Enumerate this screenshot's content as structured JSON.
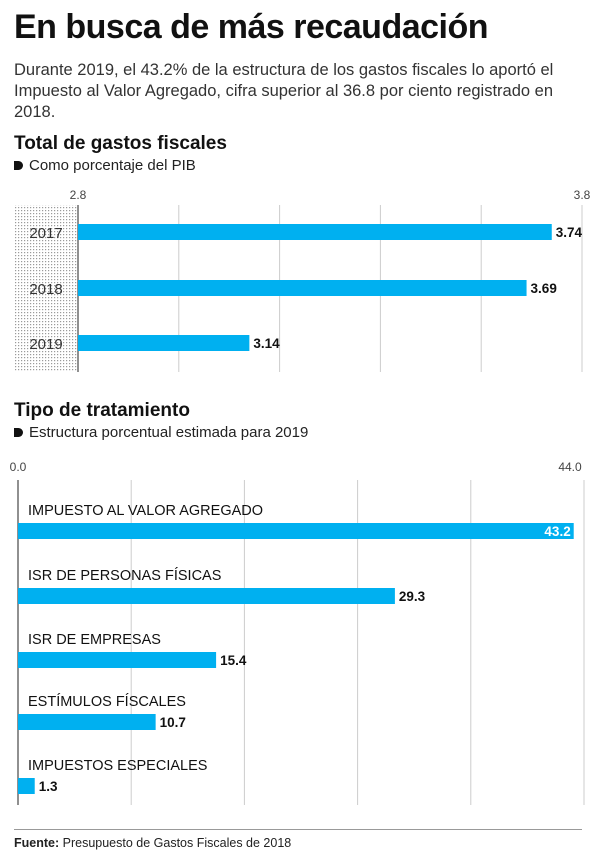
{
  "header": {
    "title": "En busca de más recaudación",
    "subtitle": "Durante 2019, el 43.2% de la estructura de los gastos fiscales lo aportó el Impuesto al Valor Agregado, cifra superior al 36.8 por ciento registrado en 2018."
  },
  "section1": {
    "title": "Total de gastos fiscales",
    "subtitle": "Como porcentaje del PIB"
  },
  "section2": {
    "title": "Tipo de tratamiento",
    "subtitle": "Estructura porcentual estimada para 2019"
  },
  "footer": {
    "label": "Fuente:",
    "text": "Presupuesto de Gastos Fiscales de 2018"
  },
  "colors": {
    "bar": "#00b0f0",
    "grid": "#cccccc",
    "axis": "#222222"
  },
  "chart_data": [
    {
      "type": "bar",
      "orientation": "horizontal",
      "title": "Total de gastos fiscales",
      "subtitle": "Como porcentaje del PIB",
      "categories": [
        "2017",
        "2018",
        "2019"
      ],
      "values": [
        3.74,
        3.69,
        3.14
      ],
      "value_labels": [
        "3.74",
        "3.69",
        "3.14"
      ],
      "xlim": [
        2.8,
        3.8
      ],
      "tick_labels": [
        "2.8",
        "3.8"
      ],
      "grid": true
    },
    {
      "type": "bar",
      "orientation": "horizontal",
      "title": "Tipo de tratamiento",
      "subtitle": "Estructura porcentual estimada para 2019",
      "categories": [
        "IMPUESTO AL VALOR AGREGADO",
        "ISR DE PERSONAS FÍSICAS",
        "ISR DE EMPRESAS",
        "ESTÍMULOS FÍSCALES",
        "IMPUESTOS ESPECIALES"
      ],
      "values": [
        43.2,
        29.3,
        15.4,
        10.7,
        1.3
      ],
      "value_labels": [
        "43.2",
        "29.3",
        "15.4",
        "10.7",
        "1.3"
      ],
      "xlim": [
        0,
        44
      ],
      "tick_labels": [
        "0.0",
        "44.0"
      ],
      "grid": true
    }
  ]
}
